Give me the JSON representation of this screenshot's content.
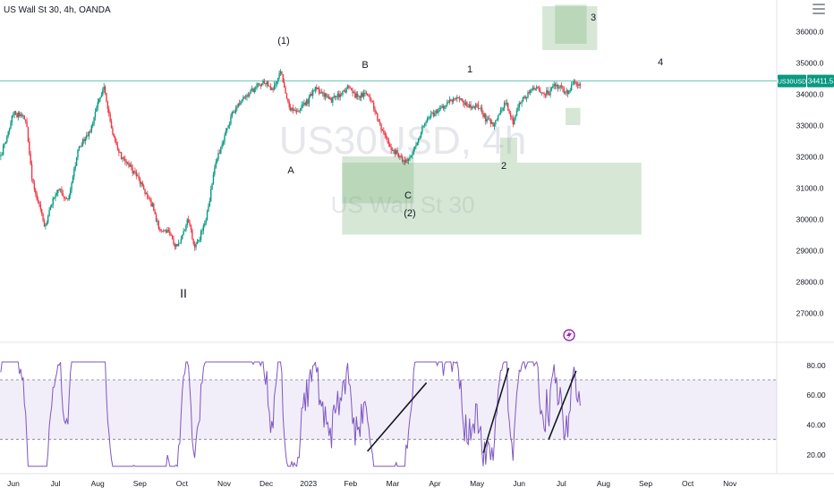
{
  "header": {
    "symbol_title": "US Wall St 30, 4h, OANDA",
    "menu_icon": "hamburger-icon"
  },
  "watermark": {
    "line1": "US30USD, 4h",
    "line2": "US Wall St 30"
  },
  "price_badge": {
    "symbol": "US30USD",
    "price": "34411.5",
    "color": "#089981"
  },
  "colors": {
    "candle_up": "#089981",
    "candle_down": "#f23645",
    "zone_fill": "#7fb47f",
    "rsi_line": "#7e57c2",
    "rsi_band": "#7e57c2",
    "price_line": "#22ab94"
  },
  "chart_data": {
    "type": "candlestick",
    "title": "US Wall St 30, 4h, OANDA",
    "price_axis": {
      "ylim": [
        26200,
        37000
      ],
      "ticks": [
        27000,
        28000,
        29000,
        30000,
        31000,
        32000,
        33000,
        34000,
        35000,
        36000
      ],
      "tick_labels": [
        "27000.0",
        "28000.0",
        "29000.0",
        "30000.0",
        "31000.0",
        "32000.0",
        "33000.0",
        "34000.0",
        "35000.0",
        "36000.0"
      ],
      "last_price": 34411.5
    },
    "time_axis": {
      "labels": [
        "Jun",
        "Jul",
        "Aug",
        "Sep",
        "Oct",
        "Nov",
        "Dec",
        "2023",
        "Feb",
        "Mar",
        "Apr",
        "May",
        "Jun",
        "Jul",
        "Aug",
        "Sep",
        "Oct",
        "Nov"
      ],
      "months": [
        0,
        1,
        2,
        3,
        4,
        5,
        6,
        7,
        8,
        9,
        10,
        11,
        12,
        13,
        14,
        15,
        16,
        17
      ]
    },
    "price_path": [
      [
        -0.3,
        32000
      ],
      [
        0.0,
        33400
      ],
      [
        0.3,
        33200
      ],
      [
        0.45,
        31200
      ],
      [
        0.6,
        30500
      ],
      [
        0.75,
        29700
      ],
      [
        0.95,
        30700
      ],
      [
        1.1,
        30900
      ],
      [
        1.3,
        30600
      ],
      [
        1.55,
        32300
      ],
      [
        1.85,
        32900
      ],
      [
        2.0,
        33800
      ],
      [
        2.15,
        34200
      ],
      [
        2.35,
        32800
      ],
      [
        2.55,
        32000
      ],
      [
        2.75,
        31700
      ],
      [
        2.95,
        31300
      ],
      [
        3.1,
        30900
      ],
      [
        3.3,
        30400
      ],
      [
        3.45,
        29700
      ],
      [
        3.7,
        29600
      ],
      [
        3.85,
        29100
      ],
      [
        4.0,
        29400
      ],
      [
        4.15,
        30000
      ],
      [
        4.3,
        29100
      ],
      [
        4.4,
        29300
      ],
      [
        4.6,
        30200
      ],
      [
        4.8,
        31800
      ],
      [
        5.0,
        32600
      ],
      [
        5.2,
        33400
      ],
      [
        5.4,
        33800
      ],
      [
        5.6,
        34000
      ],
      [
        5.8,
        34300
      ],
      [
        6.0,
        34400
      ],
      [
        6.15,
        34100
      ],
      [
        6.35,
        34700
      ],
      [
        6.5,
        33700
      ],
      [
        6.65,
        33400
      ],
      [
        6.8,
        33500
      ],
      [
        7.0,
        33800
      ],
      [
        7.15,
        34200
      ],
      [
        7.35,
        34000
      ],
      [
        7.55,
        33800
      ],
      [
        7.75,
        34000
      ],
      [
        7.95,
        34200
      ],
      [
        8.15,
        33900
      ],
      [
        8.35,
        34000
      ],
      [
        8.55,
        33600
      ],
      [
        8.75,
        32800
      ],
      [
        8.95,
        32300
      ],
      [
        9.15,
        32000
      ],
      [
        9.3,
        31800
      ],
      [
        9.5,
        32200
      ],
      [
        9.7,
        32900
      ],
      [
        9.9,
        33300
      ],
      [
        10.1,
        33500
      ],
      [
        10.3,
        33700
      ],
      [
        10.5,
        33900
      ],
      [
        10.7,
        33700
      ],
      [
        10.9,
        33600
      ],
      [
        11.05,
        33600
      ],
      [
        11.2,
        33200
      ],
      [
        11.4,
        33000
      ],
      [
        11.55,
        33500
      ],
      [
        11.7,
        33700
      ],
      [
        11.85,
        33100
      ],
      [
        12.0,
        33700
      ],
      [
        12.15,
        33900
      ],
      [
        12.35,
        34200
      ],
      [
        12.5,
        34100
      ],
      [
        12.7,
        34000
      ],
      [
        12.85,
        34300
      ],
      [
        13.0,
        34200
      ],
      [
        13.15,
        34000
      ],
      [
        13.3,
        34350
      ],
      [
        13.45,
        34200
      ]
    ],
    "rsi": {
      "ylim": [
        10,
        88
      ],
      "ticks": [
        20,
        40,
        60,
        80
      ],
      "tick_labels": [
        "20.00",
        "40.00",
        "60.00",
        "80.00"
      ],
      "upper_band": 70,
      "lower_band": 30,
      "current": 66
    },
    "wave_labels": [
      "(1)",
      "A",
      "B",
      "C",
      "(2)",
      "1",
      "2",
      "3",
      "4",
      "II"
    ],
    "zones": [
      {
        "t": [
          7.8,
          14.9
        ],
        "price": [
          29500,
          31800
        ]
      },
      {
        "t": [
          7.8,
          9.5
        ],
        "price": [
          30500,
          32000
        ]
      },
      {
        "t": [
          11.55,
          11.95
        ],
        "price": [
          31800,
          32600
        ]
      },
      {
        "t": [
          12.55,
          13.85
        ],
        "price": [
          35400,
          36800
        ]
      },
      {
        "t": [
          12.85,
          13.6
        ],
        "price": [
          35600,
          36850
        ]
      },
      {
        "t": [
          13.1,
          13.45
        ],
        "price": [
          33000,
          33550
        ]
      }
    ],
    "rsi_trendlines": [
      {
        "t": [
          8.4,
          9.8
        ],
        "rsi": [
          22,
          68
        ]
      },
      {
        "t": [
          11.15,
          11.75
        ],
        "rsi": [
          21,
          78
        ]
      },
      {
        "t": [
          12.7,
          13.35
        ],
        "rsi": [
          30,
          76
        ]
      }
    ]
  }
}
